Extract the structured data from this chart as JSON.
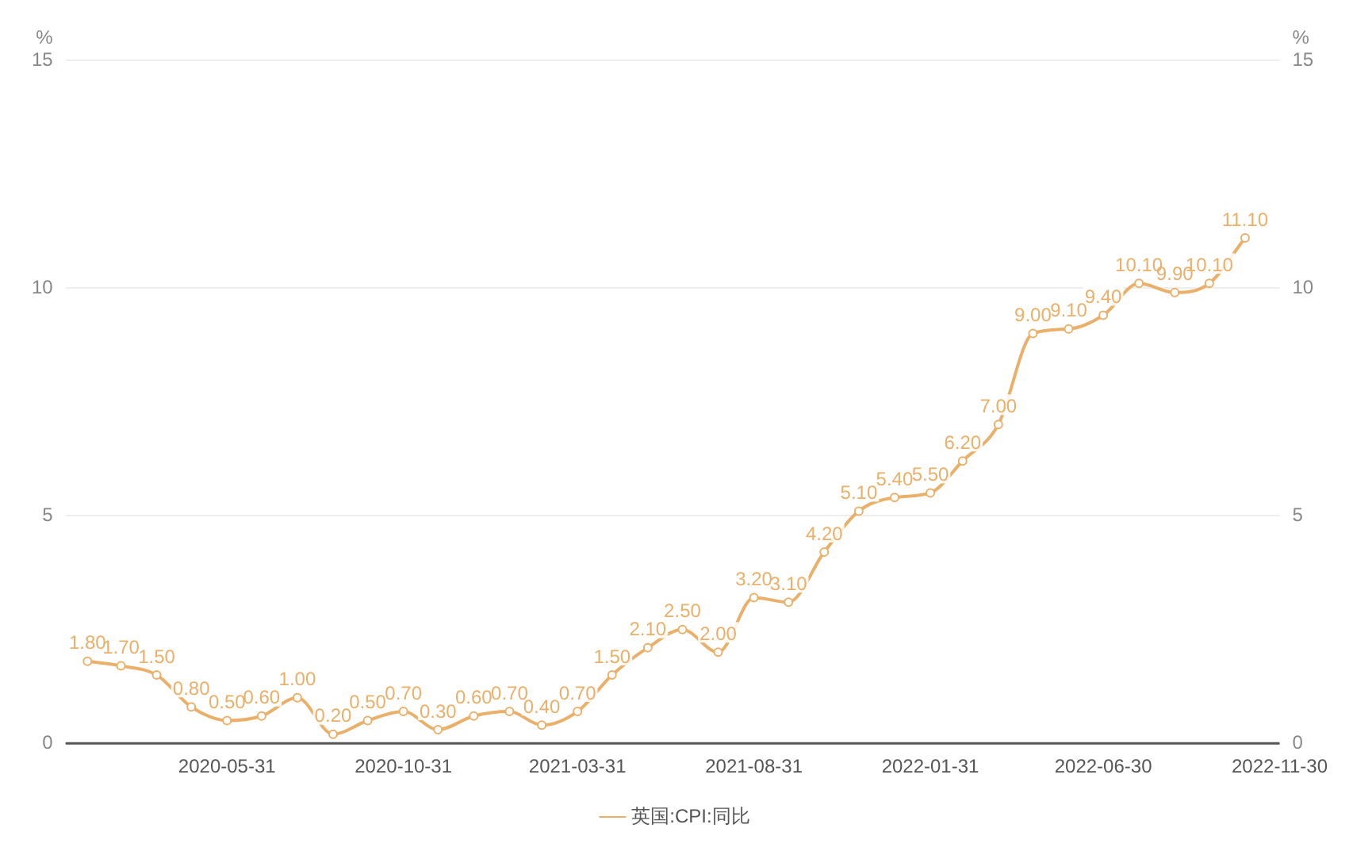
{
  "chart_data": {
    "type": "line",
    "ylabel": "%",
    "y2label": "%",
    "x": [
      "2020-01-31",
      "2020-02-29",
      "2020-03-31",
      "2020-04-30",
      "2020-05-31",
      "2020-06-30",
      "2020-07-31",
      "2020-08-31",
      "2020-09-30",
      "2020-10-31",
      "2020-11-30",
      "2020-12-31",
      "2021-01-31",
      "2021-02-28",
      "2021-03-31",
      "2021-04-30",
      "2021-05-31",
      "2021-06-30",
      "2021-07-31",
      "2021-08-31",
      "2021-09-30",
      "2021-10-31",
      "2021-11-30",
      "2021-12-31",
      "2022-01-31",
      "2022-02-28",
      "2022-03-31",
      "2022-04-30",
      "2022-05-31",
      "2022-06-30",
      "2022-07-31",
      "2022-08-31",
      "2022-09-30",
      "2022-10-31"
    ],
    "series": [
      {
        "name": "英国:CPI:同比",
        "color": "#eab06a",
        "values": [
          1.8,
          1.7,
          1.5,
          0.8,
          0.5,
          0.6,
          1.0,
          0.2,
          0.5,
          0.7,
          0.3,
          0.6,
          0.7,
          0.4,
          0.7,
          1.5,
          2.1,
          2.5,
          2.0,
          3.2,
          3.1,
          4.2,
          5.1,
          5.4,
          5.5,
          6.2,
          7.0,
          9.0,
          9.1,
          9.4,
          10.1,
          9.9,
          10.1,
          11.1
        ],
        "value_labels": [
          "1.80",
          "1.70",
          "1.50",
          "0.80",
          "0.50",
          "0.60",
          "1.00",
          "0.20",
          "0.50",
          "0.70",
          "0.30",
          "0.60",
          "0.70",
          "0.40",
          "0.70",
          "1.50",
          "2.10",
          "2.50",
          "2.00",
          "3.20",
          "3.10",
          "4.20",
          "5.10",
          "5.40",
          "5.50",
          "6.20",
          "7.00",
          "9.00",
          "9.10",
          "9.40",
          "10.10",
          "9.90",
          "10.10",
          "11.10"
        ]
      }
    ],
    "xlim": [
      "2020-01-12",
      "2022-11-30"
    ],
    "xticks": [
      "2020-05-31",
      "2020-10-31",
      "2021-03-31",
      "2021-08-31",
      "2022-01-31",
      "2022-06-30",
      "2022-11-30"
    ],
    "ylim": [
      0,
      15
    ],
    "yticks": [
      0,
      5,
      10,
      15
    ],
    "y2lim": [
      0,
      15
    ],
    "y2ticks": [
      0,
      5,
      10,
      15
    ],
    "grid": "y",
    "legend": "bottom",
    "marker": "circle",
    "line_style": "solid"
  }
}
